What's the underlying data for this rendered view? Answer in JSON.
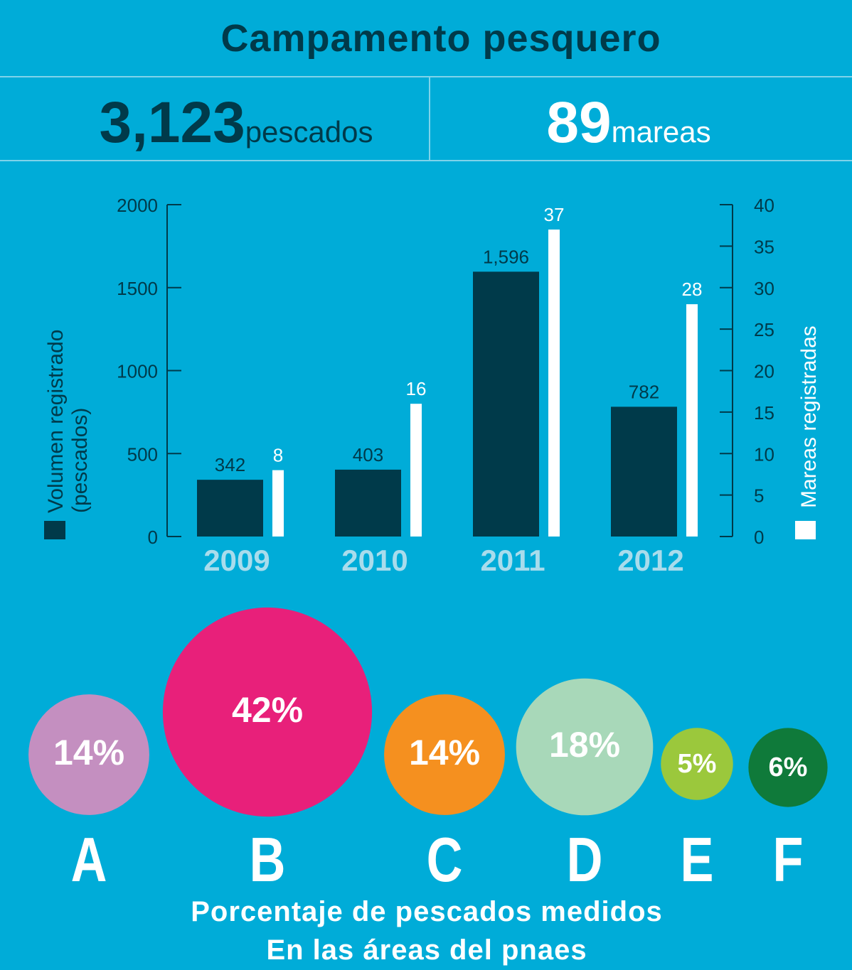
{
  "header": {
    "title": "Campamento pesquero"
  },
  "stats": [
    {
      "value": "3,123",
      "unit": "pescados"
    },
    {
      "value": "89",
      "unit": "mareas"
    }
  ],
  "chart_data": [
    {
      "type": "bar",
      "categories": [
        "2009",
        "2010",
        "2011",
        "2012"
      ],
      "series": [
        {
          "name": "Volumen registrado (pescados)",
          "color": "#003a4a",
          "values": [
            342,
            403,
            1596,
            782
          ],
          "value_labels": [
            "342",
            "403",
            "1,596",
            "782"
          ]
        },
        {
          "name": "Mareas registradas",
          "color": "#ffffff",
          "axis": "y2",
          "values": [
            8,
            16,
            37,
            28
          ]
        }
      ],
      "ylim": [
        0,
        2000
      ],
      "yticks": [
        0,
        500,
        1000,
        1500,
        2000
      ],
      "y2lim": [
        0,
        40
      ],
      "y2ticks": [
        0,
        5,
        10,
        15,
        20,
        25,
        30,
        35,
        40
      ]
    },
    {
      "type": "bubble",
      "title": "Porcentaje de pescados medidos",
      "subtitle": "En las áreas del pnaes",
      "categories": [
        "A",
        "B",
        "C",
        "D",
        "E",
        "F"
      ],
      "values": [
        14,
        42,
        14,
        18,
        5,
        6
      ],
      "value_labels": [
        "14%",
        "42%",
        "14%",
        "18%",
        "5%",
        "6%"
      ],
      "colors": [
        "#c48fc0",
        "#e8207a",
        "#f5901f",
        "#a8d8b9",
        "#9bc83c",
        "#0f7a3a"
      ]
    }
  ]
}
